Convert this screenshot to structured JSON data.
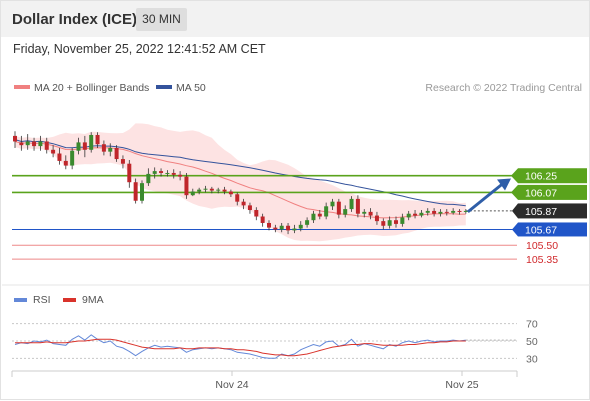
{
  "header": {
    "title": "Dollar Index (ICE)",
    "timeframe": "30 MIN"
  },
  "datetime": "Friday, November 25, 2022 12:41:52 AM CET",
  "legend": {
    "ma20": "MA 20 + Bollinger Bands",
    "ma50": "MA 50",
    "credit": "Research © 2022 Trading Central"
  },
  "rsi_legend": {
    "rsi": "RSI",
    "ma9": "9MA"
  },
  "colors": {
    "ma20": "#f08080",
    "ma50": "#34539c",
    "band_fill": "#fde3e3",
    "candle_up": "#3a8a2e",
    "candle_down": "#c0262b",
    "resistance": "#5aa31c",
    "support": "#2055c8",
    "target_line": "#ee8888",
    "target_text": "#d0292c",
    "arrow": "#2f5ea8",
    "rsi": "#6388d8",
    "rsi_ma": "#d9332b"
  },
  "chart_data": {
    "type": "candlestick",
    "title": "Dollar Index (ICE)",
    "timeframe": "30 MIN",
    "x_ticks": [
      "Nov 24",
      "Nov 25"
    ],
    "price_ylim": [
      105.2,
      107.1
    ],
    "levels": [
      {
        "label": "106.25",
        "value": 106.25,
        "kind": "resistance"
      },
      {
        "label": "106.07",
        "value": 106.07,
        "kind": "resistance"
      },
      {
        "label": "105.87",
        "value": 105.87,
        "kind": "last"
      },
      {
        "label": "105.67",
        "value": 105.67,
        "kind": "support"
      },
      {
        "label": "105.50",
        "value": 105.5,
        "kind": "target"
      },
      {
        "label": "105.35",
        "value": 105.35,
        "kind": "target"
      }
    ],
    "projection": {
      "from": 105.86,
      "to": 106.22
    },
    "candles": [
      [
        106.68,
        106.62,
        106.73,
        106.55
      ],
      [
        106.61,
        106.58,
        106.68,
        106.52
      ],
      [
        106.58,
        106.62,
        106.7,
        106.53
      ],
      [
        106.62,
        106.57,
        106.66,
        106.52
      ],
      [
        106.57,
        106.62,
        106.68,
        106.52
      ],
      [
        106.62,
        106.53,
        106.66,
        106.49
      ],
      [
        106.53,
        106.49,
        106.58,
        106.45
      ],
      [
        106.49,
        106.41,
        106.55,
        106.37
      ],
      [
        106.41,
        106.36,
        106.47,
        106.32
      ],
      [
        106.36,
        106.52,
        106.55,
        106.32
      ],
      [
        106.52,
        106.61,
        106.66,
        106.48
      ],
      [
        106.61,
        106.53,
        106.68,
        106.45
      ],
      [
        106.53,
        106.69,
        106.72,
        106.5
      ],
      [
        106.69,
        106.59,
        106.72,
        106.55
      ],
      [
        106.59,
        106.51,
        106.63,
        106.47
      ],
      [
        106.51,
        106.55,
        106.6,
        106.46
      ],
      [
        106.55,
        106.43,
        106.58,
        106.4
      ],
      [
        106.43,
        106.38,
        106.47,
        106.33
      ],
      [
        106.38,
        106.18,
        106.42,
        106.12
      ],
      [
        106.18,
        105.98,
        106.22,
        105.95
      ],
      [
        105.98,
        106.17,
        106.2,
        105.95
      ],
      [
        106.17,
        106.27,
        106.33,
        106.14
      ],
      [
        106.27,
        106.3,
        106.34,
        106.22
      ],
      [
        106.3,
        106.28,
        106.33,
        106.24
      ],
      [
        106.28,
        106.28,
        106.31,
        106.24
      ],
      [
        106.28,
        106.26,
        106.32,
        106.22
      ],
      [
        106.26,
        106.24,
        106.3,
        106.2
      ],
      [
        106.24,
        106.04,
        106.28,
        106.0
      ],
      [
        106.04,
        106.08,
        106.11,
        106.03
      ],
      [
        106.08,
        106.1,
        106.12,
        106.05
      ],
      [
        106.1,
        106.11,
        106.14,
        106.07
      ],
      [
        106.11,
        106.09,
        106.13,
        106.06
      ],
      [
        106.09,
        106.1,
        106.12,
        106.06
      ],
      [
        106.1,
        106.08,
        106.13,
        106.05
      ],
      [
        106.08,
        106.05,
        106.1,
        106.02
      ],
      [
        106.05,
        105.97,
        106.07,
        105.93
      ],
      [
        105.97,
        105.93,
        106.0,
        105.89
      ],
      [
        105.93,
        105.88,
        105.96,
        105.84
      ],
      [
        105.88,
        105.81,
        105.91,
        105.77
      ],
      [
        105.81,
        105.74,
        105.84,
        105.7
      ],
      [
        105.74,
        105.69,
        105.77,
        105.66
      ],
      [
        105.69,
        105.67,
        105.72,
        105.64
      ],
      [
        105.67,
        105.71,
        105.74,
        105.64
      ],
      [
        105.71,
        105.66,
        105.74,
        105.62
      ],
      [
        105.66,
        105.68,
        105.72,
        105.63
      ],
      [
        105.68,
        105.72,
        105.76,
        105.65
      ],
      [
        105.72,
        105.77,
        105.8,
        105.69
      ],
      [
        105.77,
        105.84,
        105.87,
        105.74
      ],
      [
        105.84,
        105.81,
        105.88,
        105.78
      ],
      [
        105.81,
        105.92,
        105.96,
        105.78
      ],
      [
        105.92,
        105.97,
        106.0,
        105.88
      ],
      [
        105.97,
        105.83,
        106.0,
        105.79
      ],
      [
        105.83,
        105.89,
        105.93,
        105.8
      ],
      [
        105.89,
        106.0,
        106.03,
        105.86
      ],
      [
        106.0,
        105.84,
        106.04,
        105.8
      ],
      [
        105.84,
        105.86,
        105.89,
        105.8
      ],
      [
        105.86,
        105.82,
        105.9,
        105.78
      ],
      [
        105.82,
        105.76,
        105.86,
        105.72
      ],
      [
        105.76,
        105.71,
        105.79,
        105.67
      ],
      [
        105.71,
        105.77,
        105.81,
        105.68
      ],
      [
        105.77,
        105.73,
        105.81,
        105.69
      ],
      [
        105.73,
        105.8,
        105.84,
        105.7
      ],
      [
        105.8,
        105.84,
        105.87,
        105.77
      ],
      [
        105.84,
        105.82,
        105.88,
        105.79
      ],
      [
        105.82,
        105.85,
        105.88,
        105.8
      ],
      [
        105.85,
        105.87,
        105.9,
        105.82
      ],
      [
        105.87,
        105.84,
        105.9,
        105.81
      ],
      [
        105.84,
        105.86,
        105.89,
        105.81
      ],
      [
        105.86,
        105.85,
        105.89,
        105.82
      ],
      [
        105.85,
        105.87,
        105.9,
        105.83
      ],
      [
        105.87,
        105.86,
        105.89,
        105.83
      ],
      [
        105.86,
        105.87,
        105.89,
        105.84
      ]
    ],
    "rsi": {
      "name": "RSI",
      "ma_name": "9MA",
      "ylim": [
        20,
        80
      ],
      "levels": [
        70,
        50,
        30
      ],
      "values": [
        46,
        48,
        47,
        50,
        49,
        51,
        47,
        46,
        45,
        52,
        56,
        51,
        57,
        52,
        48,
        50,
        44,
        42,
        38,
        33,
        38,
        42,
        45,
        43,
        44,
        43,
        42,
        37,
        40,
        41,
        42,
        41,
        42,
        41,
        40,
        37,
        36,
        35,
        33,
        31,
        30,
        30,
        35,
        33,
        35,
        40,
        43,
        46,
        44,
        49,
        50,
        44,
        46,
        52,
        44,
        47,
        45,
        43,
        41,
        46,
        44,
        48,
        50,
        48,
        50,
        51,
        49,
        50,
        50,
        51,
        50,
        51
      ],
      "ma_values": [
        48,
        48,
        48,
        48,
        48,
        49,
        48,
        48,
        48,
        49,
        50,
        50,
        51,
        52,
        52,
        52,
        51,
        49,
        47,
        45,
        43,
        42,
        41,
        41,
        41,
        41,
        42,
        41,
        41,
        42,
        42,
        42,
        42,
        41,
        41,
        40,
        40,
        39,
        38,
        36,
        35,
        34,
        34,
        33,
        33,
        34,
        35,
        37,
        39,
        41,
        43,
        44,
        45,
        46,
        46,
        47,
        47,
        46,
        45,
        45,
        45,
        45,
        46,
        46,
        47,
        48,
        48,
        49,
        49,
        50,
        50,
        50
      ]
    }
  }
}
